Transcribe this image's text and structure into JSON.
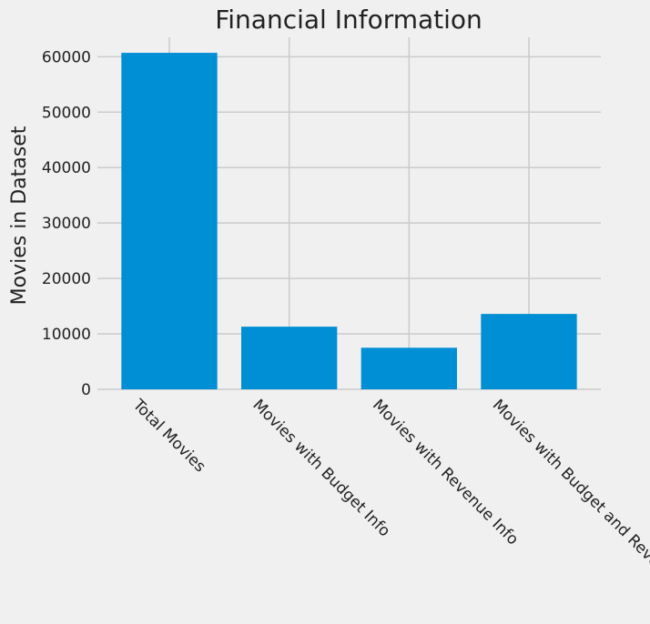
{
  "chart_data": {
    "type": "bar",
    "title": "Financial Information",
    "xlabel": "",
    "ylabel": "Movies in Dataset",
    "categories": [
      "Total Movies",
      "Movies with Budget Info",
      "Movies with Revenue Info",
      "Movies with Budget and Revenue"
    ],
    "values": [
      60700,
      11300,
      7500,
      13600
    ],
    "ylim": [
      0,
      63500
    ],
    "yticks": [
      0,
      10000,
      20000,
      30000,
      40000,
      50000,
      60000
    ],
    "bar_color": "#008fd5",
    "grid": true
  }
}
